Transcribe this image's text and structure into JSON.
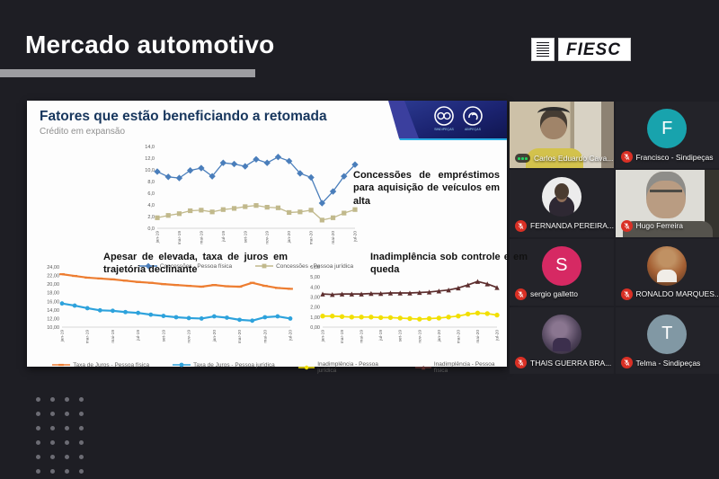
{
  "header": {
    "title": "Mercado automotivo",
    "logo_text": "FIESC"
  },
  "slide": {
    "title": "Fatores que estão beneficiando a retomada",
    "subtitle": "Crédito em expansão",
    "banner_org_left": "SINDIPEÇAS",
    "banner_org_right": "ABIPEÇAS",
    "annotation_credit": "Concessões de empréstimos para aquisição de veículos em alta"
  },
  "chart_data": [
    {
      "type": "line",
      "title": "",
      "categories": [
        "jan-19",
        "fev-19",
        "mar-19",
        "abr-19",
        "mai-19",
        "jun-19",
        "jul-19",
        "ago-19",
        "set-19",
        "out-19",
        "nov-19",
        "dez-19",
        "jan-20",
        "fev-20",
        "mar-20",
        "abr-20",
        "mai-20",
        "jun-20",
        "jul-20"
      ],
      "label_every": 2,
      "ylim": [
        0,
        14
      ],
      "ytick": 2,
      "decimals": 1,
      "grid": false,
      "legend_position": "bottom",
      "series": [
        {
          "name": "Concessões - Pessoa física",
          "color": "#4a7ebb",
          "marker": "diamond",
          "values": [
            9.7,
            8.8,
            8.6,
            9.9,
            10.3,
            8.9,
            11.2,
            11.0,
            10.6,
            11.8,
            11.2,
            12.2,
            11.5,
            9.4,
            8.7,
            4.3,
            6.3,
            8.9,
            10.9
          ]
        },
        {
          "name": "Concessões - Pessoa jurídica",
          "color": "#c1b98c",
          "marker": "square",
          "values": [
            1.8,
            2.2,
            2.5,
            3.0,
            3.1,
            2.8,
            3.2,
            3.4,
            3.7,
            3.9,
            3.6,
            3.5,
            2.7,
            2.8,
            3.1,
            1.4,
            1.8,
            2.6,
            3.2
          ]
        }
      ]
    },
    {
      "type": "line",
      "title": "Apesar de elevada, taxa de juros em trajetória declinante",
      "categories": [
        "jan-19",
        "fev-19",
        "mar-19",
        "abr-19",
        "mai-19",
        "jun-19",
        "jul-19",
        "ago-19",
        "set-19",
        "out-19",
        "nov-19",
        "dez-19",
        "jan-20",
        "fev-20",
        "mar-20",
        "abr-20",
        "mai-20",
        "jun-20",
        "jul-20"
      ],
      "label_every": 2,
      "ylim": [
        10,
        24
      ],
      "ytick": 2,
      "decimals": 2,
      "grid": false,
      "legend_position": "bottom",
      "series": [
        {
          "name": "Taxa de Juros - Pessoa física",
          "color": "#ed7d31",
          "marker": "dash",
          "values": [
            22.3,
            21.9,
            21.5,
            21.3,
            21.1,
            20.8,
            20.5,
            20.3,
            20.0,
            19.8,
            19.6,
            19.4,
            19.8,
            19.5,
            19.4,
            20.3,
            19.6,
            19.1,
            18.9
          ]
        },
        {
          "name": "Taxa de Juros - Pessoa jurídica",
          "color": "#2da2dc",
          "marker": "circle",
          "values": [
            15.5,
            15.0,
            14.4,
            13.9,
            13.8,
            13.5,
            13.3,
            12.9,
            12.6,
            12.3,
            12.1,
            12.0,
            12.5,
            12.2,
            11.7,
            11.5,
            12.3,
            12.5,
            12.0
          ]
        }
      ]
    },
    {
      "type": "line",
      "title": "Inadimplência sob controle e em queda",
      "categories": [
        "jan-19",
        "fev-19",
        "mar-19",
        "abr-19",
        "mai-19",
        "jun-19",
        "jul-19",
        "ago-19",
        "set-19",
        "out-19",
        "nov-19",
        "dez-19",
        "jan-20",
        "fev-20",
        "mar-20",
        "abr-20",
        "mai-20",
        "jun-20",
        "jul-20"
      ],
      "label_every": 2,
      "ylim": [
        0,
        6
      ],
      "ytick": 1,
      "decimals": 2,
      "grid": false,
      "legend_position": "bottom",
      "series": [
        {
          "name": "Inadimplência - Pessoa jurídica",
          "color": "#f2df00",
          "marker": "circle",
          "values": [
            1.1,
            1.1,
            1.05,
            1.0,
            1.0,
            1.0,
            0.95,
            0.95,
            0.9,
            0.85,
            0.8,
            0.85,
            0.9,
            1.0,
            1.1,
            1.3,
            1.4,
            1.35,
            1.2
          ]
        },
        {
          "name": "Inadimplência - Pessoa física",
          "color": "#5d2e2e",
          "marker": "triangle",
          "values": [
            3.3,
            3.25,
            3.3,
            3.3,
            3.3,
            3.35,
            3.35,
            3.4,
            3.4,
            3.4,
            3.45,
            3.5,
            3.6,
            3.7,
            3.9,
            4.2,
            4.55,
            4.3,
            3.95
          ]
        }
      ]
    }
  ],
  "participants": [
    {
      "name": "Carlos Eduardo Cava...",
      "tile": "video",
      "scene": "video-carlos",
      "mic": "speaking"
    },
    {
      "name": "Francisco - Sindipeças",
      "tile": "letter",
      "letter": "F",
      "avatar_color": "#18a3ad",
      "mic": "muted"
    },
    {
      "name": "FERNANDA PEREIRA...",
      "tile": "photo",
      "scene": "photo-fernanda",
      "mic": "muted"
    },
    {
      "name": "Hugo Ferreira",
      "tile": "video",
      "scene": "video-hugo",
      "mic": "muted"
    },
    {
      "name": "sergio galletto",
      "tile": "letter",
      "letter": "S",
      "avatar_color": "#d62963",
      "mic": "muted"
    },
    {
      "name": "RONALDO MARQUES...",
      "tile": "photo",
      "scene": "photo-ronaldo",
      "mic": "muted"
    },
    {
      "name": "THAIS GUERRA BRA...",
      "tile": "photo",
      "scene": "photo-thais",
      "mic": "muted"
    },
    {
      "name": "Telma - Sindipeças",
      "tile": "letter",
      "letter": "T",
      "avatar_color": "#8198a4",
      "mic": "muted"
    }
  ],
  "colors": {
    "background": "#1e1e24",
    "header_text": "#ffffff",
    "header_underline": "#9d9da1",
    "slide_title": "#17365d",
    "muted_mic": "#d93025",
    "speaking_indicator": "#23d160",
    "banner_blue_dark": "#141b5e",
    "banner_blue": "#2b3990",
    "banner_cyan": "#29abe2"
  }
}
